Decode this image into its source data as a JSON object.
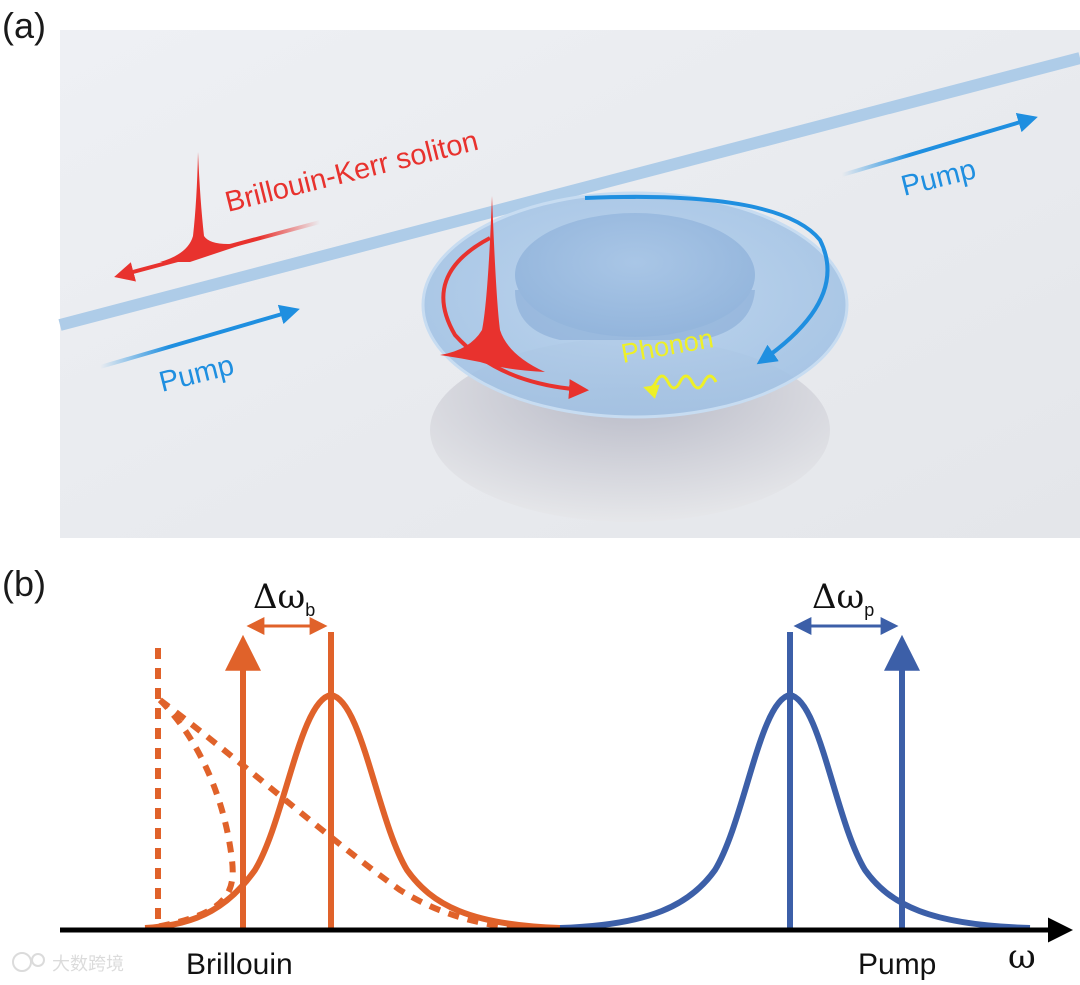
{
  "panel_a": {
    "label": "(a)",
    "soliton_label": "Brillouin-Kerr soliton",
    "pump_left_label": "Pump",
    "pump_right_label": "Pump",
    "phonon_label": "Phonon"
  },
  "panel_b": {
    "label": "(b)",
    "delta_b_main": "Δω",
    "delta_b_sub": "b",
    "delta_p_main": "Δω",
    "delta_p_sub": "p",
    "brillouin_label": "Brillouin",
    "pump_label": "Pump",
    "axis_label": "ω"
  },
  "colors": {
    "brillouin": "#e0622a",
    "pump": "#3c5fa8",
    "soliton_red": "#e8322e",
    "pump_blue": "#1f8fe0",
    "phonon_yellow": "#eef027"
  },
  "watermark": "大数跨境"
}
